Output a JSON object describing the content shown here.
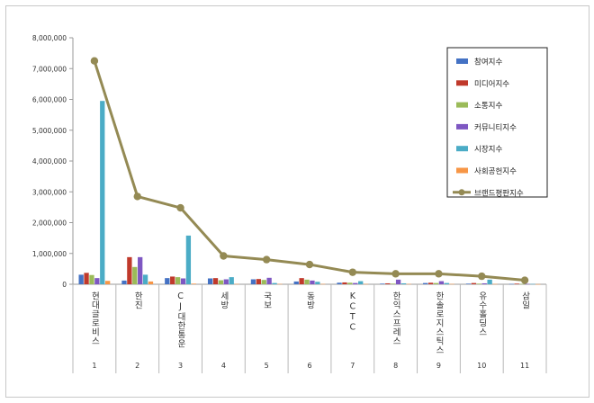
{
  "chart_data": {
    "type": "bar",
    "title": "",
    "xlabel": "",
    "ylabel": "",
    "ylim": [
      0,
      8000000
    ],
    "yticks": [
      0,
      1000000,
      2000000,
      3000000,
      4000000,
      5000000,
      6000000,
      7000000,
      8000000
    ],
    "ytick_labels": [
      "0",
      "1,000,000",
      "2,000,000",
      "3,000,000",
      "4,000,000",
      "5,000,000",
      "6,000,000",
      "7,000,000",
      "8,000,000"
    ],
    "grid": false,
    "legend_position": "top-right",
    "categories": [
      "현대글로비스",
      "한진",
      "CJ대한통운",
      "세방",
      "국보",
      "동방",
      "KCTC",
      "한익스프레스",
      "한솔로지스틱스",
      "유수홀딩스",
      "삼일"
    ],
    "ranks": [
      "1",
      "2",
      "3",
      "4",
      "5",
      "6",
      "7",
      "8",
      "9",
      "10",
      "11"
    ],
    "series": [
      {
        "name": "참여지수",
        "kind": "bar",
        "color": "#4472c4",
        "values": [
          310000,
          120000,
          200000,
          190000,
          160000,
          90000,
          50000,
          20000,
          40000,
          20000,
          10000
        ]
      },
      {
        "name": "미디어지수",
        "kind": "bar",
        "color": "#c0392b",
        "values": [
          370000,
          880000,
          250000,
          200000,
          170000,
          200000,
          60000,
          30000,
          50000,
          40000,
          20000
        ]
      },
      {
        "name": "소통지수",
        "kind": "bar",
        "color": "#9bbb59",
        "values": [
          300000,
          560000,
          230000,
          130000,
          140000,
          150000,
          50000,
          20000,
          40000,
          20000,
          10000
        ]
      },
      {
        "name": "커뮤니티지수",
        "kind": "bar",
        "color": "#7e57c2",
        "values": [
          200000,
          880000,
          190000,
          160000,
          210000,
          120000,
          40000,
          150000,
          100000,
          30000,
          10000
        ]
      },
      {
        "name": "시장지수",
        "kind": "bar",
        "color": "#4bacc6",
        "values": [
          5950000,
          310000,
          1580000,
          230000,
          40000,
          80000,
          100000,
          30000,
          40000,
          150000,
          10000
        ]
      },
      {
        "name": "사회공헌지수",
        "kind": "bar",
        "color": "#f79646",
        "values": [
          110000,
          90000,
          20000,
          10000,
          10000,
          10000,
          10000,
          10000,
          10000,
          10000,
          5000
        ]
      },
      {
        "name": "브랜드평판지수",
        "kind": "line",
        "color": "#948a54",
        "values": [
          7250000,
          2850000,
          2480000,
          920000,
          800000,
          640000,
          390000,
          340000,
          340000,
          260000,
          130000
        ]
      }
    ]
  }
}
